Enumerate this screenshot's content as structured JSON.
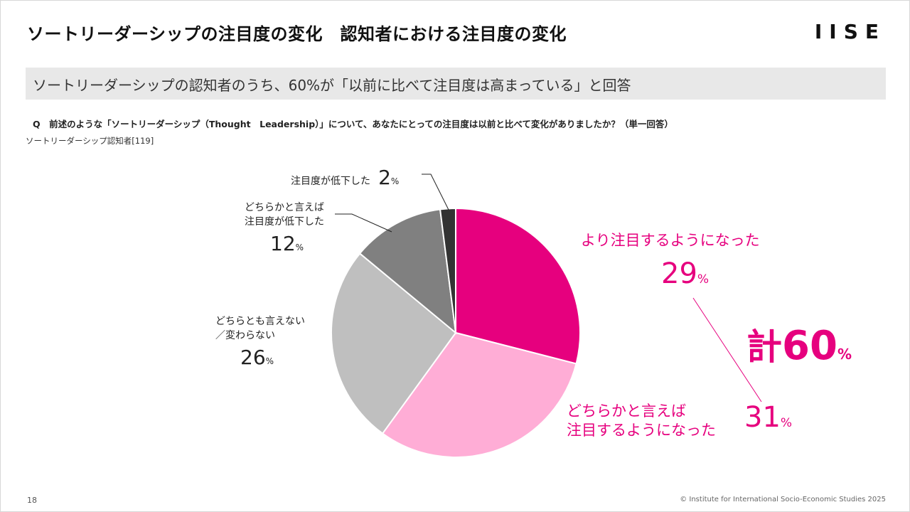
{
  "header": {
    "title": "ソートリーダーシップの注目度の変化　認知者における注目度の変化",
    "logo": "IISE"
  },
  "banner": {
    "text": "ソートリーダーシップの認知者のうち、60%が「以前に比べて注目度は高まっている」と回答"
  },
  "question": "Q　前述のような「ソートリーダーシップ（Thought　Leadership）」について、あなたにとっての注目度は以前と比べて変化がありましたか？（単一回答）",
  "base": "ソートリーダーシップ認知者[119]",
  "chart_data": {
    "type": "pie",
    "title": "",
    "start": "12 o'clock, clockwise",
    "slices": [
      {
        "label": "より注目するようになった",
        "value": 29,
        "color": "#e6007e"
      },
      {
        "label": "どちらかと言えば注目するようになった",
        "value": 31,
        "color": "#ffadd6"
      },
      {
        "label": "どちらとも言えない／変わらない",
        "value": 26,
        "color": "#bfbfbf"
      },
      {
        "label": "どちらかと言えば注目度が低下した",
        "value": 12,
        "color": "#808080"
      },
      {
        "label": "注目度が低下した",
        "value": 2,
        "color": "#333333"
      }
    ],
    "unit": "%",
    "total": {
      "prefix": "計",
      "value": "60",
      "unit": "%"
    }
  },
  "labels": {
    "decline": {
      "line1": "注目度が低下した",
      "num": "2",
      "pct": "%"
    },
    "some_decline": {
      "line1": "どちらかと言えば",
      "line2": "注目度が低下した",
      "num": "12",
      "pct": "%"
    },
    "neutral": {
      "line1": "どちらとも言えない",
      "line2": "／変わらない",
      "num": "26",
      "pct": "%"
    },
    "more": {
      "line1": "より注目するようになった",
      "num": "29",
      "pct": "%"
    },
    "some_more": {
      "line1": "どちらかと言えば",
      "line2": "注目するようになった",
      "num": "31",
      "pct": "%"
    }
  },
  "footer": {
    "page": "18",
    "copyright": "© Institute for International Socio-Economic Studies 2025"
  }
}
